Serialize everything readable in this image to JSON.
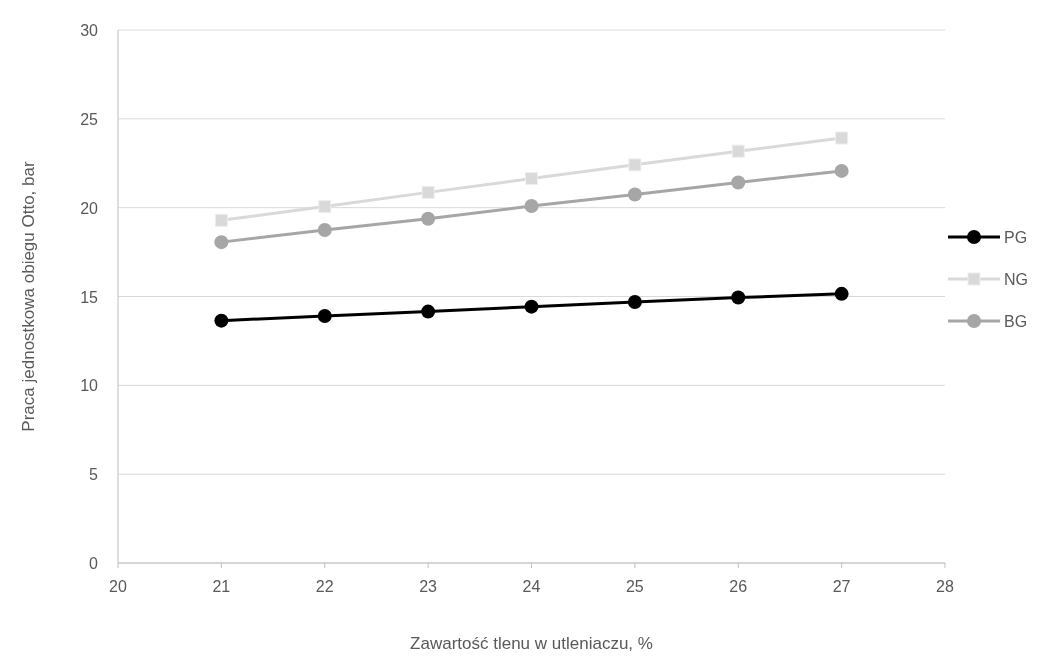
{
  "chart_data": {
    "type": "line",
    "xlabel": "Zawartość tlenu w utleniaczu, %",
    "ylabel": "Praca jednostkowa obiegu Otto, bar",
    "x": [
      21,
      22,
      23,
      24,
      25,
      26,
      27
    ],
    "series": [
      {
        "name": "PG",
        "color": "#000000",
        "marker": "circle",
        "values": [
          13.64,
          13.9,
          14.15,
          14.43,
          14.69,
          14.94,
          15.15
        ]
      },
      {
        "name": "NG",
        "color": "#d9d9d9",
        "marker": "square",
        "values": [
          19.29,
          20.06,
          20.86,
          21.64,
          22.41,
          23.18,
          23.92
        ]
      },
      {
        "name": "BG",
        "color": "#a6a6a6",
        "marker": "circle",
        "values": [
          18.06,
          18.74,
          19.38,
          20.09,
          20.74,
          21.42,
          22.07
        ]
      }
    ],
    "xlim": [
      20,
      28
    ],
    "xticks": [
      20,
      21,
      22,
      23,
      24,
      25,
      26,
      27,
      28
    ],
    "ylim": [
      0,
      30
    ],
    "yticks": [
      0,
      5,
      10,
      15,
      20,
      25,
      30
    ],
    "grid": "y",
    "legend": "right"
  }
}
